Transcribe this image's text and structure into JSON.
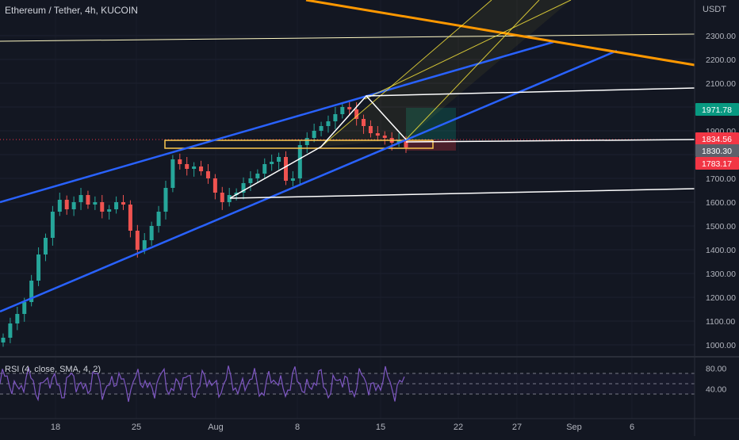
{
  "chart_data": {
    "type": "candlestick",
    "title": "Ethereum / Tether, 4h, KUCOIN",
    "currency": "USDT",
    "price_axis": {
      "ticks": [
        "2300.00",
        "2200.00",
        "2100.00",
        "2000.00",
        "1900.00",
        "1800.00",
        "1700.00",
        "1600.00",
        "1500.00",
        "1400.00",
        "1300.00",
        "1200.00",
        "1100.00",
        "1000.00"
      ],
      "ylim": [
        950,
        2390
      ]
    },
    "time_axis": {
      "ticks": [
        "18",
        "25",
        "Aug",
        "8",
        "15",
        "22",
        "27",
        "Sep",
        "6"
      ]
    },
    "price_labels": [
      {
        "value": "1971.78",
        "color": "#089981"
      },
      {
        "value": "1834.56",
        "color": "#f23645"
      },
      {
        "value": "1830.30",
        "color": "#5d606b"
      },
      {
        "value": "1783.17",
        "color": "#f23645"
      }
    ],
    "candles_close_approx": [
      1030,
      1090,
      1130,
      1180,
      1270,
      1380,
      1450,
      1560,
      1610,
      1570,
      1600,
      1630,
      1590,
      1600,
      1560,
      1570,
      1600,
      1590,
      1480,
      1400,
      1440,
      1500,
      1560,
      1660,
      1780,
      1760,
      1740,
      1750,
      1730,
      1700,
      1640,
      1600,
      1630,
      1640,
      1680,
      1700,
      1720,
      1760,
      1770,
      1790,
      1690,
      1700,
      1840,
      1870,
      1900,
      1920,
      1940,
      1970,
      2000,
      1990,
      1950,
      1920,
      1890,
      1880,
      1870,
      1850,
      1860,
      1830
    ],
    "rsi": {
      "label": "RSI (4, close, SMA, 4, 2)",
      "ticks": [
        "80.00",
        "40.00"
      ],
      "levels": [
        70,
        50,
        30
      ],
      "color": "#7e57c2"
    },
    "drawings": {
      "channel_color": "#2962ff",
      "trend_orange_color": "#ff9800",
      "horizontal_line_value": 2300,
      "zone_color": "#f9c74f",
      "pitchfork_color": "#ffeb3b",
      "pattern_color": "#ffffff"
    }
  }
}
